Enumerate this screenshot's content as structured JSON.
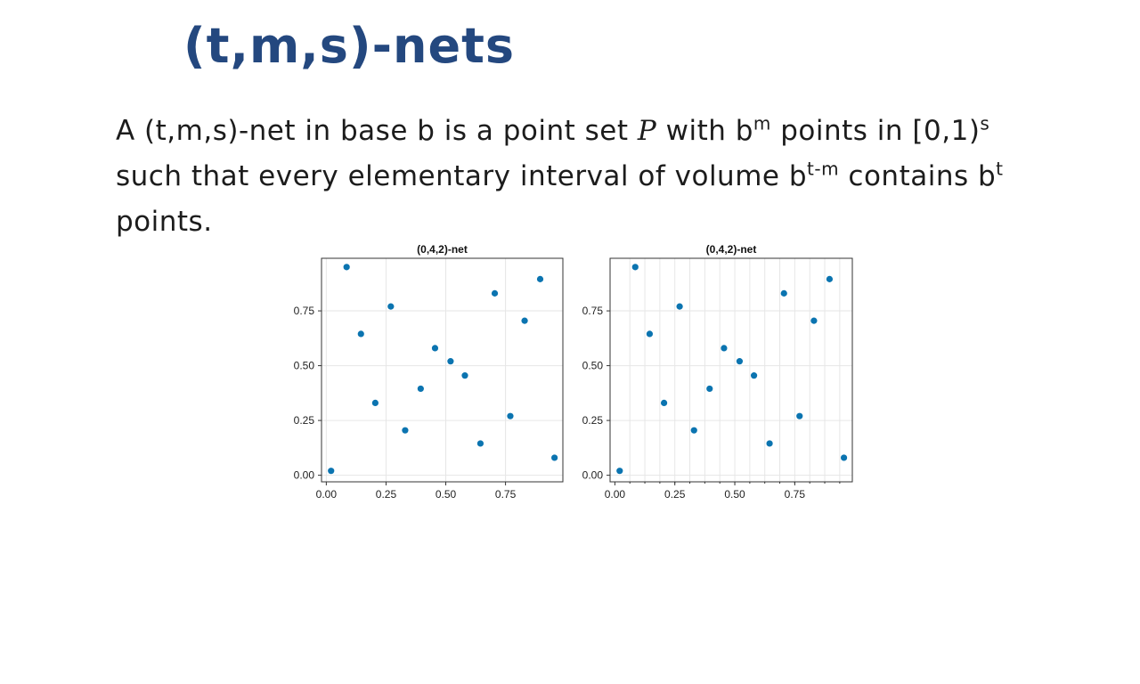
{
  "slide": {
    "title": "(t,m,s)-nets",
    "definition": {
      "part1": "A (t,m,s)-net in base b is a point set ",
      "set_symbol": "P",
      "part2": " with b",
      "sup_m": "m",
      "part3": " points in [0,1)",
      "sup_s": "s",
      "part4": " such that every elementary interval of volume b",
      "sup_tm": "t-m",
      "part5": " contains b",
      "sup_t": "t",
      "part6": " points."
    }
  },
  "colors": {
    "title": "#24487f",
    "point": "#0b74b0",
    "grid": "#e6e6e6",
    "axis": "#333333"
  },
  "chart_data": [
    {
      "type": "scatter",
      "title": "(0,4,2)-net",
      "xlim": [
        -0.02,
        0.99
      ],
      "ylim": [
        -0.03,
        0.99
      ],
      "xticks": [
        0.0,
        0.25,
        0.5,
        0.75
      ],
      "yticks": [
        0.0,
        0.25,
        0.5,
        0.75
      ],
      "tick_labels": [
        "0.00",
        "0.25",
        "0.50",
        "0.75"
      ],
      "grid": "major",
      "x": [
        0.02,
        0.085,
        0.145,
        0.205,
        0.27,
        0.33,
        0.395,
        0.455,
        0.52,
        0.58,
        0.645,
        0.705,
        0.77,
        0.83,
        0.895,
        0.955
      ],
      "y": [
        0.02,
        0.95,
        0.645,
        0.33,
        0.77,
        0.205,
        0.395,
        0.58,
        0.52,
        0.455,
        0.145,
        0.83,
        0.27,
        0.705,
        0.895,
        0.08
      ]
    },
    {
      "type": "scatter",
      "title": "(0,4,2)-net",
      "xlim": [
        -0.02,
        0.99
      ],
      "ylim": [
        -0.03,
        0.99
      ],
      "xticks": [
        0.0,
        0.25,
        0.5,
        0.75
      ],
      "yticks": [
        0.0,
        0.25,
        0.5,
        0.75
      ],
      "tick_labels": [
        "0.00",
        "0.25",
        "0.50",
        "0.75"
      ],
      "grid": "vertical lines at every 1/16",
      "x": [
        0.02,
        0.085,
        0.145,
        0.205,
        0.27,
        0.33,
        0.395,
        0.455,
        0.52,
        0.58,
        0.645,
        0.705,
        0.77,
        0.83,
        0.895,
        0.955
      ],
      "y": [
        0.02,
        0.95,
        0.645,
        0.33,
        0.77,
        0.205,
        0.395,
        0.58,
        0.52,
        0.455,
        0.145,
        0.83,
        0.27,
        0.705,
        0.895,
        0.08
      ]
    }
  ]
}
